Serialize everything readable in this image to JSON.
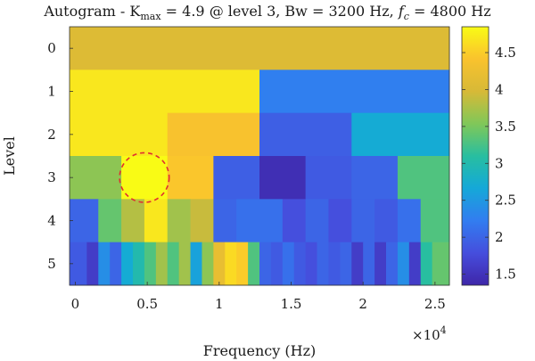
{
  "chart_data": {
    "type": "heatmap",
    "title": {
      "prefix": "Autogram - K",
      "sub": "max",
      "middle": " = 4.9 @ level 3, Bw = 3200 Hz, ",
      "fc_var": "f",
      "fc_sub": "c",
      "suffix": " = 4800 Hz"
    },
    "xlabel": "Frequency (Hz)",
    "ylabel": "Level",
    "x_multiplier": {
      "base": "×10",
      "exp": "4"
    },
    "xlim": [
      -0.04,
      2.6
    ],
    "x_ticks": [
      {
        "value": 0,
        "label": "0"
      },
      {
        "value": 0.5,
        "label": "0.5"
      },
      {
        "value": 1,
        "label": "1"
      },
      {
        "value": 1.5,
        "label": "1.5"
      },
      {
        "value": 2,
        "label": "2"
      },
      {
        "value": 2.5,
        "label": "2.5"
      }
    ],
    "y_ticks": [
      "0",
      "1",
      "2",
      "3",
      "4",
      "5"
    ],
    "colorbar": {
      "min": 1.35,
      "max": 4.85,
      "ticks": [
        {
          "value": 1.5,
          "label": "1.5"
        },
        {
          "value": 2,
          "label": "2"
        },
        {
          "value": 2.5,
          "label": "2.5"
        },
        {
          "value": 3,
          "label": "3"
        },
        {
          "value": 3.5,
          "label": "3.5"
        },
        {
          "value": 4,
          "label": "4"
        },
        {
          "value": 4.5,
          "label": "4.5"
        }
      ]
    },
    "rows": [
      {
        "level": 0,
        "values": [
          4.05
        ]
      },
      {
        "level": 1,
        "values": [
          4.7,
          2.25
        ]
      },
      {
        "level": 2,
        "values": [
          4.7,
          4.4,
          1.95,
          2.7
        ]
      },
      {
        "level": 3,
        "values": [
          3.6,
          4.9,
          4.45,
          1.95,
          1.45,
          1.9,
          2.0,
          3.3
        ]
      },
      {
        "level": 4,
        "values": [
          2.0,
          3.4,
          3.8,
          4.7,
          3.7,
          3.9,
          2.0,
          2.1,
          2.1,
          1.8,
          2.0,
          1.8,
          2.0,
          1.9,
          2.1,
          3.3
        ]
      },
      {
        "level": 5,
        "values": [
          1.9,
          1.6,
          2.4,
          2.0,
          2.7,
          3.0,
          3.3,
          3.7,
          3.3,
          3.7,
          2.6,
          3.6,
          4.2,
          4.6,
          4.5,
          3.3,
          2.0,
          1.9,
          2.1,
          1.9,
          1.8,
          2.0,
          1.9,
          2.0,
          1.6,
          2.0,
          1.6,
          2.0,
          2.4,
          1.6,
          3.1,
          3.4
        ]
      }
    ],
    "marker": {
      "level": 3,
      "center_freq": 0.48,
      "bandwidth": 0.32,
      "style": "red dashed circle"
    }
  }
}
